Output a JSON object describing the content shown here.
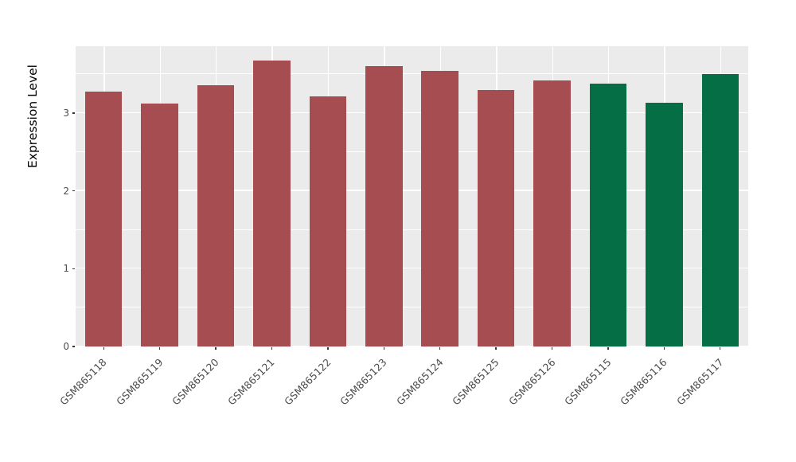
{
  "chart_data": {
    "type": "bar",
    "title": "",
    "xlabel": "",
    "ylabel": "Expression Level",
    "categories": [
      "GSM865118",
      "GSM865119",
      "GSM865120",
      "GSM865121",
      "GSM865122",
      "GSM865123",
      "GSM865124",
      "GSM865125",
      "GSM865126",
      "GSM865115",
      "GSM865116",
      "GSM865117"
    ],
    "values": [
      3.28,
      3.12,
      3.36,
      3.68,
      3.22,
      3.6,
      3.54,
      3.3,
      3.42,
      3.38,
      3.13,
      3.5
    ],
    "colors": [
      "#A64D52",
      "#A64D52",
      "#A64D52",
      "#A64D52",
      "#A64D52",
      "#A64D52",
      "#A64D52",
      "#A64D52",
      "#A64D52",
      "#066E45",
      "#066E45",
      "#066E45"
    ],
    "ylim": [
      0,
      3.86
    ],
    "yticks": [
      0,
      1,
      2,
      3
    ],
    "yticks_minor": [
      0.5,
      1.5,
      2.5,
      3.5
    ],
    "panel_background": "#EBEBEB",
    "grid_color": "#ffffff",
    "grid": "major horizontal + minor horizontal + vertical at categories",
    "legend_position": "none",
    "bar_width_fraction": 0.66
  }
}
